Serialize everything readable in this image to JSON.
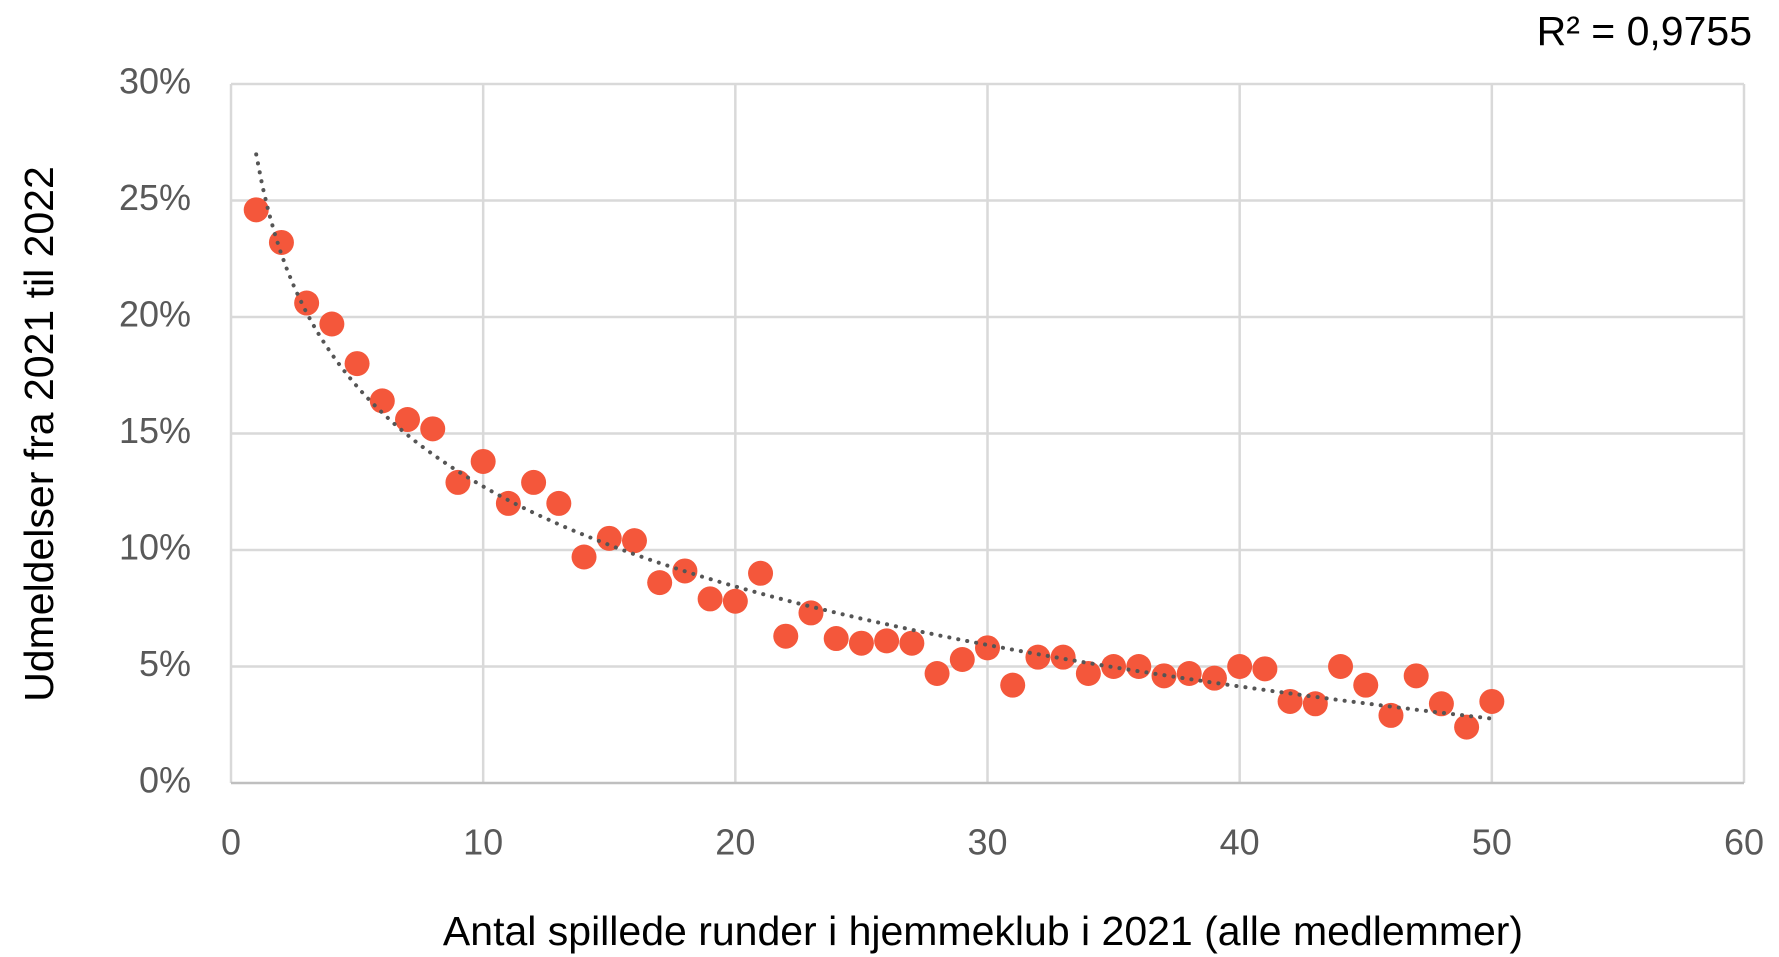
{
  "chart_data": {
    "type": "scatter",
    "annotation": "R² = 0,9755",
    "x_label": "Antal spillede runder i hjemmeklub i 2021 (alle medlemmer)",
    "y_label": "Udmeldelser fra 2021 til 2022",
    "x": [
      1,
      2,
      3,
      4,
      5,
      6,
      7,
      8,
      9,
      10,
      11,
      12,
      13,
      14,
      15,
      16,
      17,
      18,
      19,
      20,
      21,
      22,
      23,
      24,
      25,
      26,
      27,
      28,
      29,
      30,
      31,
      32,
      33,
      34,
      35,
      36,
      37,
      38,
      39,
      40,
      41,
      42,
      43,
      44,
      45,
      46,
      47,
      48,
      49,
      50
    ],
    "values": [
      24.6,
      23.2,
      20.6,
      19.7,
      18.0,
      16.4,
      15.6,
      15.2,
      12.9,
      13.8,
      12.0,
      12.9,
      12.0,
      9.7,
      10.5,
      10.4,
      8.6,
      9.1,
      7.9,
      7.8,
      9.0,
      6.3,
      7.3,
      6.2,
      6.0,
      6.1,
      6.0,
      4.7,
      5.3,
      5.8,
      4.2,
      5.4,
      5.4,
      4.7,
      5.0,
      5.0,
      4.6,
      4.7,
      4.5,
      5.0,
      4.9,
      3.5,
      3.4,
      5.0,
      4.2,
      2.9,
      4.6,
      3.4,
      2.4,
      3.5
    ],
    "color": "#f4573b",
    "trendline": {
      "type": "logarithmic",
      "color": "#555555",
      "style": "dotted"
    },
    "xlim": [
      0,
      60
    ],
    "xticks": [
      0,
      10,
      20,
      30,
      40,
      50,
      60
    ],
    "ylim": [
      0,
      30
    ],
    "yticks": [
      {
        "value": 0,
        "label": "0%"
      },
      {
        "value": 5,
        "label": "5%"
      },
      {
        "value": 10,
        "label": "10%"
      },
      {
        "value": 15,
        "label": "15%"
      },
      {
        "value": 20,
        "label": "20%"
      },
      {
        "value": 25,
        "label": "25%"
      },
      {
        "value": 30,
        "label": "30%"
      }
    ],
    "grid": true
  }
}
